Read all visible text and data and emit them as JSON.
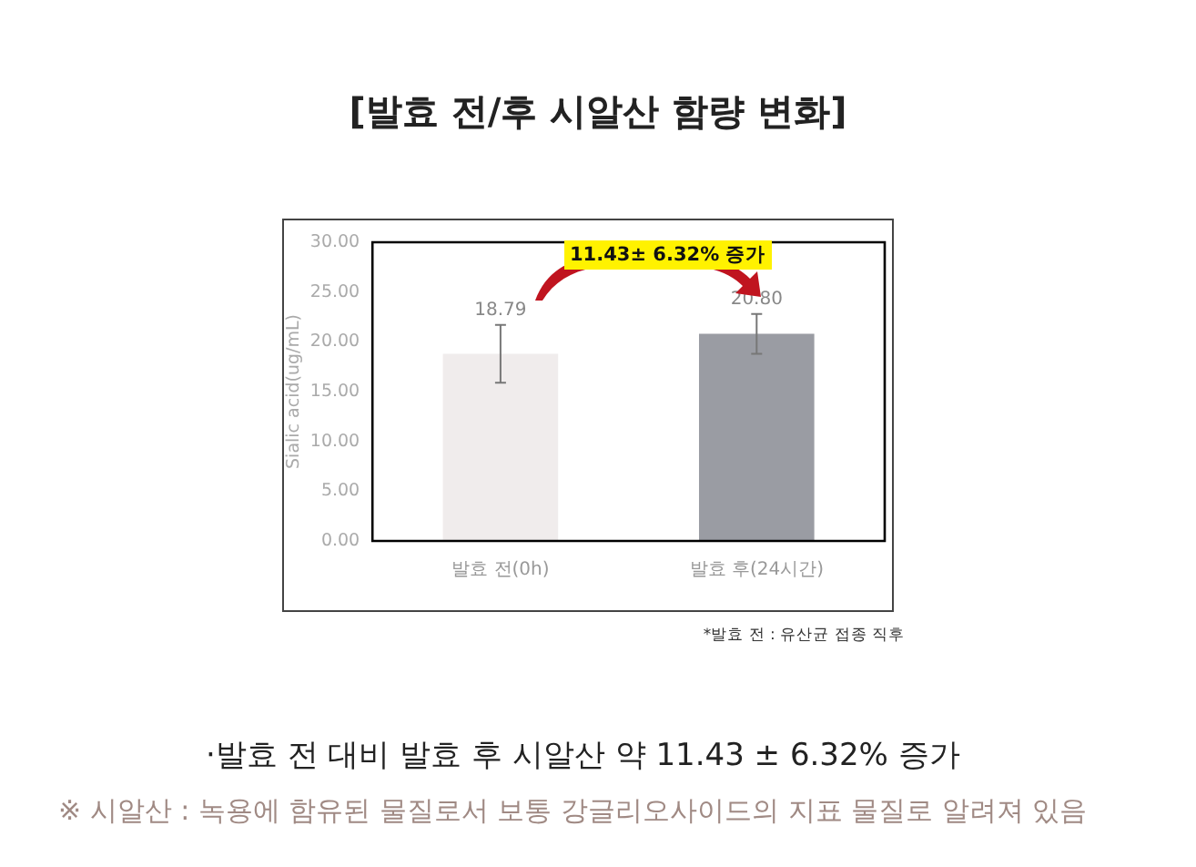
{
  "chart_data": {
    "type": "bar",
    "title": "[발효 전/후 시알산 함량 변화]",
    "ylabel": "Sialic acid(ug/mL)",
    "categories": [
      "발효 전(0h)",
      "발효 후(24시간)"
    ],
    "values": [
      18.79,
      20.8
    ],
    "colors": [
      "#f0ecec",
      "#9a9ca3"
    ],
    "errors": [
      2.9,
      2.0
    ],
    "value_labels": [
      "18.79",
      "20.80"
    ],
    "ylim": [
      0,
      30
    ],
    "yticks": [
      {
        "value": 0,
        "label": "0.00"
      },
      {
        "value": 5,
        "label": "5.00"
      },
      {
        "value": 10,
        "label": "10.00"
      },
      {
        "value": 15,
        "label": "15.00"
      },
      {
        "value": 20,
        "label": "20.00"
      },
      {
        "value": 25,
        "label": "25.00"
      },
      {
        "value": 30,
        "label": "30.00"
      }
    ],
    "grid": false,
    "legend": false,
    "annotations": [
      "11.43± 6.32% 증가",
      "*발효 전 : 유산균 접종 직후",
      "·발효 전 대비 발효 후 시알산 약 11.43 ± 6.32% 증가",
      "※ 시알산 : 녹용에 함유된 물질로서 보통 강글리오사이드의 지표 물질로 알려져 있음"
    ]
  }
}
